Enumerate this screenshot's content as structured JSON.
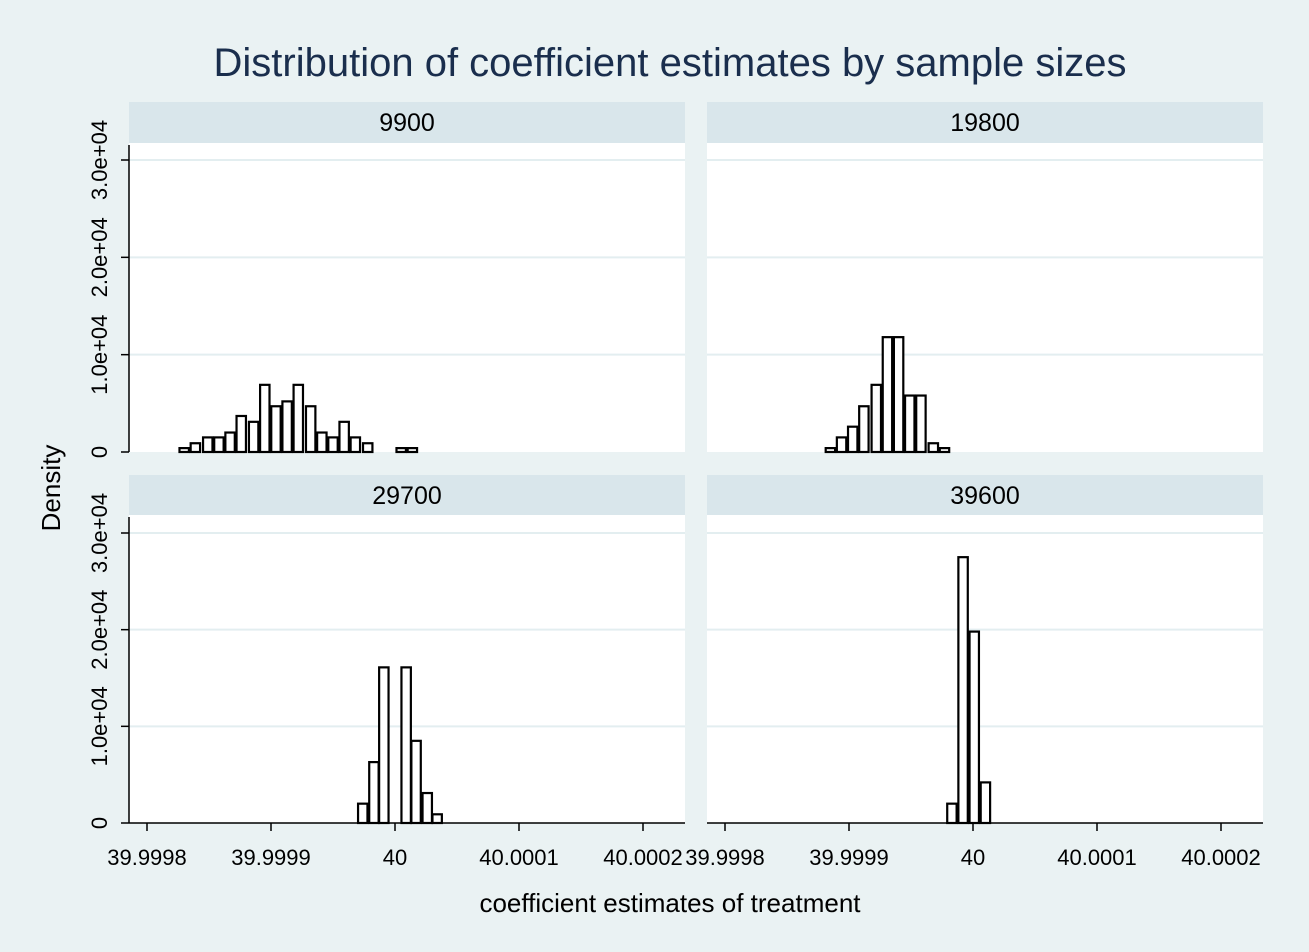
{
  "chart_data": {
    "type": "bar",
    "title": "Distribution of coefficient estimates by sample sizes",
    "xlabel": "coefficient estimates of treatment",
    "ylabel": "Density",
    "x_ticks": [
      {
        "value": 39.9998,
        "label": "39.9998"
      },
      {
        "value": 39.9999,
        "label": "39.9999"
      },
      {
        "value": 40.0,
        "label": "40"
      },
      {
        "value": 40.0001,
        "label": "40.0001"
      },
      {
        "value": 40.0002,
        "label": "40.0002"
      }
    ],
    "y_ticks": [
      {
        "value": 0,
        "label": "0"
      },
      {
        "value": 10000,
        "label": "1.0e+04"
      },
      {
        "value": 20000,
        "label": "2.0e+04"
      },
      {
        "value": 30000,
        "label": "3.0e+04"
      }
    ],
    "xlim": [
      39.999792,
      40.000216
    ],
    "ylim": [
      0,
      30000
    ],
    "bin_width": 9.2e-06,
    "grid": true,
    "panels": [
      {
        "label": "9900",
        "bins": [
          {
            "x": 39.99983,
            "density": 400
          },
          {
            "x": 39.999839,
            "density": 900
          },
          {
            "x": 39.999849,
            "density": 1500
          },
          {
            "x": 39.999858,
            "density": 1500
          },
          {
            "x": 39.999867,
            "density": 2000
          },
          {
            "x": 39.999876,
            "density": 3700
          },
          {
            "x": 39.999886,
            "density": 3100
          },
          {
            "x": 39.999895,
            "density": 6900
          },
          {
            "x": 39.999904,
            "density": 4700
          },
          {
            "x": 39.999913,
            "density": 5200
          },
          {
            "x": 39.999922,
            "density": 6900
          },
          {
            "x": 39.999932,
            "density": 4700
          },
          {
            "x": 39.999941,
            "density": 2000
          },
          {
            "x": 39.99995,
            "density": 1500
          },
          {
            "x": 39.999959,
            "density": 3100
          },
          {
            "x": 39.999968,
            "density": 1500
          },
          {
            "x": 39.999978,
            "density": 900
          },
          {
            "x": 40.000005,
            "density": 400
          },
          {
            "x": 40.000014,
            "density": 400
          }
        ]
      },
      {
        "label": "19800",
        "bins": [
          {
            "x": 39.999885,
            "density": 400
          },
          {
            "x": 39.999894,
            "density": 1500
          },
          {
            "x": 39.999903,
            "density": 2600
          },
          {
            "x": 39.999912,
            "density": 4700
          },
          {
            "x": 39.999922,
            "density": 6900
          },
          {
            "x": 39.999931,
            "density": 11800
          },
          {
            "x": 39.99994,
            "density": 11800
          },
          {
            "x": 39.999949,
            "density": 5800
          },
          {
            "x": 39.999958,
            "density": 5800
          },
          {
            "x": 39.999968,
            "density": 900
          },
          {
            "x": 39.999977,
            "density": 400
          }
        ]
      },
      {
        "label": "29700",
        "bins": [
          {
            "x": 39.999974,
            "density": 2000
          },
          {
            "x": 39.999983,
            "density": 6300
          },
          {
            "x": 39.999991,
            "density": 16100
          },
          {
            "x": 40.000009,
            "density": 16100
          },
          {
            "x": 40.000017,
            "density": 8500
          },
          {
            "x": 40.000026,
            "density": 3100
          },
          {
            "x": 40.000034,
            "density": 900
          }
        ]
      },
      {
        "label": "39600",
        "bins": [
          {
            "x": 39.999983,
            "density": 2000
          },
          {
            "x": 39.999992,
            "density": 27500
          },
          {
            "x": 40.000001,
            "density": 19800
          },
          {
            "x": 40.00001,
            "density": 4200
          }
        ]
      }
    ]
  }
}
